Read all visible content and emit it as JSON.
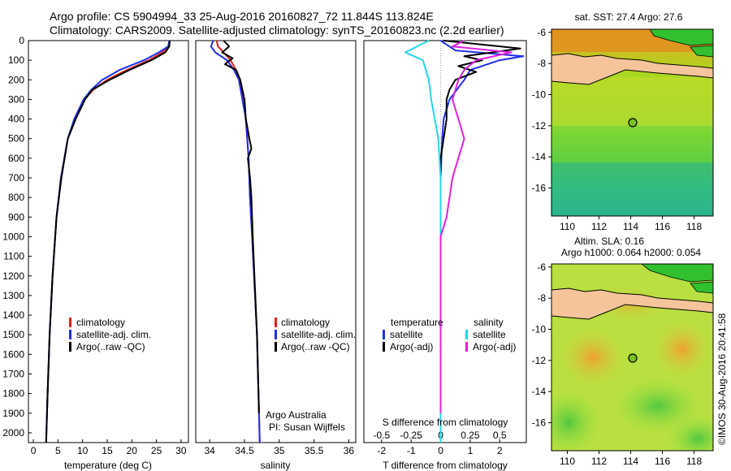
{
  "header": {
    "line1": "Argo profile: CS 5904994_33 25-Aug-2016 20160827_72 11.844S 113.824E",
    "line2": "Climatology: CARS2009. Satellite-adjusted climatology: synTS_20160823.nc (2.2d earlier)"
  },
  "colors": {
    "climatology": "#e0201c",
    "satellite": "#1f2fe6",
    "argo": "#000000",
    "sat_salinity": "#22d8e8",
    "argo_salinity": "#e020e0",
    "land": "#f5c49a"
  },
  "depth_axis": {
    "range": [
      0,
      2050
    ],
    "ticks": [
      0,
      100,
      200,
      300,
      400,
      500,
      600,
      700,
      800,
      900,
      1000,
      1100,
      1200,
      1300,
      1400,
      1500,
      1600,
      1700,
      1800,
      1900,
      2000
    ]
  },
  "chart_data": [
    {
      "type": "line",
      "panel": "temperature",
      "xlabel": "temperature (deg C)",
      "xlim": [
        -1,
        31.5
      ],
      "xticks": [
        0,
        5,
        10,
        15,
        20,
        25,
        30
      ],
      "legend": [
        "climatology",
        "satellite-adj. clim.",
        "Argo(..raw -QC)"
      ],
      "series": [
        {
          "name": "climatology",
          "color": "#e0201c",
          "depth": [
            0,
            30,
            60,
            100,
            150,
            200,
            250,
            300,
            400,
            500,
            700,
            900,
            1200,
            1500,
            1800,
            2050
          ],
          "values": [
            27.7,
            27.5,
            26.2,
            23.5,
            19.0,
            15.0,
            12.2,
            10.3,
            8.4,
            7.0,
            5.6,
            4.7,
            3.9,
            3.3,
            2.9,
            2.6
          ]
        },
        {
          "name": "satellite-adj. clim.",
          "color": "#1f2fe6",
          "depth": [
            0,
            30,
            60,
            100,
            150,
            200,
            250,
            300,
            400,
            500,
            700,
            900,
            1200,
            1500,
            1800,
            2050
          ],
          "values": [
            27.6,
            27.4,
            25.5,
            22.5,
            17.5,
            14.0,
            11.8,
            10.2,
            8.3,
            7.0,
            5.6,
            4.7,
            3.9,
            3.3,
            2.9,
            2.6
          ]
        },
        {
          "name": "Argo(..raw -QC)",
          "color": "#000000",
          "depth": [
            0,
            30,
            60,
            100,
            150,
            200,
            250,
            300,
            400,
            500,
            700,
            900,
            1200,
            1500,
            1800,
            2050
          ],
          "values": [
            27.7,
            27.6,
            26.8,
            24.0,
            19.5,
            15.5,
            12.0,
            10.5,
            8.6,
            7.0,
            5.7,
            4.7,
            3.9,
            3.3,
            2.9,
            2.6
          ]
        }
      ]
    },
    {
      "type": "line",
      "panel": "salinity",
      "xlabel": "salinity",
      "xlim": [
        33.8,
        36.1
      ],
      "xticks": [
        34,
        34.5,
        35,
        35.5,
        36
      ],
      "legend": [
        "climatology",
        "satellite-adj. clim.",
        "Argo(..raw -QC)"
      ],
      "annotation": [
        "Argo Australia",
        "PI: Susan Wijffels"
      ],
      "series": [
        {
          "name": "climatology",
          "color": "#e0201c",
          "depth": [
            0,
            30,
            60,
            100,
            150,
            200,
            300,
            400,
            600,
            800,
            1000,
            1500,
            2050
          ],
          "values": [
            34.1,
            34.12,
            34.2,
            34.3,
            34.38,
            34.43,
            34.48,
            34.52,
            34.56,
            34.58,
            34.61,
            34.68,
            34.72
          ]
        },
        {
          "name": "satellite-adj. clim.",
          "color": "#1f2fe6",
          "depth": [
            0,
            30,
            60,
            100,
            150,
            200,
            300,
            400,
            600,
            800,
            1000,
            1500,
            2050
          ],
          "values": [
            34.05,
            34.02,
            34.08,
            34.25,
            34.35,
            34.42,
            34.47,
            34.52,
            34.56,
            34.58,
            34.61,
            34.68,
            34.72
          ]
        },
        {
          "name": "Argo(..raw -QC)",
          "color": "#000000",
          "depth": [
            0,
            30,
            60,
            90,
            120,
            150,
            200,
            300,
            400,
            500,
            550,
            600,
            700,
            800,
            1000,
            1500,
            1900
          ],
          "values": [
            34.2,
            34.28,
            34.18,
            34.33,
            34.22,
            34.38,
            34.44,
            34.5,
            34.52,
            34.57,
            34.6,
            34.55,
            34.58,
            34.6,
            34.62,
            34.68,
            34.71
          ]
        }
      ]
    },
    {
      "type": "line",
      "panel": "difference",
      "xlabel": "T difference from climatology",
      "xlabel_top": "S difference from climatology",
      "xlim": [
        -2.6,
        2.9
      ],
      "xticks": [
        -2,
        -1,
        0,
        1,
        2
      ],
      "xticks_salinity": [
        "-0.5",
        "-0.25",
        "0",
        "0.25",
        "0.5"
      ],
      "legend_temperature_title": "temperature",
      "legend_salinity_title": "salinity",
      "legend": [
        "satellite",
        "Argo(-adj)",
        "satellite",
        "Argo(-adj)"
      ],
      "series": [
        {
          "name": "temperature satellite",
          "color": "#1f2fe6",
          "depth": [
            0,
            50,
            80,
            100,
            150,
            200,
            300,
            400,
            500,
            700,
            1000,
            1500,
            2050
          ],
          "values": [
            0.0,
            0.5,
            2.8,
            2.0,
            1.0,
            0.8,
            0.3,
            0.1,
            0.05,
            0.0,
            0.0,
            0.0,
            0.0
          ]
        },
        {
          "name": "temperature Argo(-adj)",
          "color": "#000000",
          "depth": [
            0,
            40,
            80,
            100,
            130,
            160,
            200,
            250,
            300,
            400,
            500,
            600,
            700,
            1000,
            1900
          ],
          "values": [
            0.1,
            2.7,
            0.8,
            1.4,
            0.6,
            1.2,
            0.5,
            0.3,
            0.2,
            0.2,
            0.1,
            0.0,
            0.0,
            0.0,
            0.0
          ]
        },
        {
          "name": "salinity satellite",
          "color": "#22d8e8",
          "depth": [
            0,
            60,
            100,
            200,
            300,
            400,
            500,
            700,
            1000,
            1500,
            2050
          ],
          "values": [
            -0.1,
            -0.3,
            -0.15,
            -0.1,
            -0.08,
            -0.05,
            -0.02,
            0.0,
            0.0,
            0.0,
            0.0
          ]
        },
        {
          "name": "salinity Argo(-adj)",
          "color": "#e020e0",
          "depth": [
            0,
            30,
            60,
            100,
            150,
            200,
            300,
            500,
            700,
            900,
            1000,
            1500,
            1900
          ],
          "values": [
            0.2,
            0.1,
            0.6,
            0.3,
            0.2,
            0.15,
            0.1,
            0.2,
            0.1,
            0.05,
            0.0,
            0.0,
            0.0
          ]
        }
      ]
    },
    {
      "type": "heatmap",
      "panel": "map-sst",
      "title": "sat. SST: 27.4  Argo: 27.6",
      "xlim": [
        109,
        119.2
      ],
      "ylim": [
        -17.8,
        -5.8
      ],
      "xticks": [
        110,
        112,
        114,
        116,
        118
      ],
      "yticks": [
        -6,
        -8,
        -10,
        -12,
        -14,
        -16
      ],
      "marker": {
        "lon": 113.824,
        "lat": -11.844
      }
    },
    {
      "type": "heatmap",
      "panel": "map-sla",
      "title": [
        "Altim. SLA: 0.16",
        "Argo h1000: 0.064 h2000: 0.054"
      ],
      "xlim": [
        109,
        119.2
      ],
      "ylim": [
        -17.8,
        -5.8
      ],
      "xticks": [
        110,
        112,
        114,
        116,
        118
      ],
      "yticks": [
        -6,
        -8,
        -10,
        -12,
        -14,
        -16
      ],
      "marker": {
        "lon": 113.824,
        "lat": -11.844
      }
    }
  ],
  "credit": "©IMOS 30-Aug-2016 20:41:58"
}
